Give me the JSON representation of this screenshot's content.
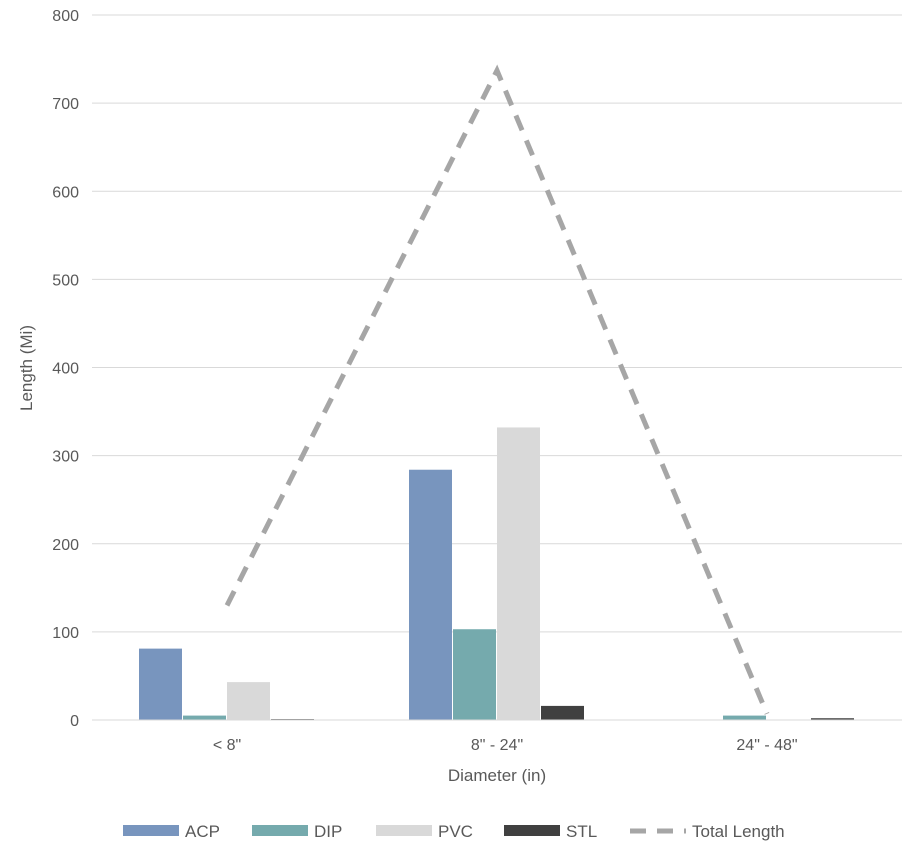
{
  "chart_data": {
    "type": "bar",
    "categories": [
      "< 8\"",
      "8\" - 24\"",
      "24\" - 48\""
    ],
    "series": [
      {
        "name": "ACP",
        "kind": "bar",
        "color": "#7895BE",
        "values": [
          81,
          284,
          0
        ]
      },
      {
        "name": "DIP",
        "kind": "bar",
        "color": "#75AAAD",
        "values": [
          5,
          103,
          5
        ]
      },
      {
        "name": "PVC",
        "kind": "bar",
        "color": "#D9D9D9",
        "values": [
          43,
          332,
          0
        ]
      },
      {
        "name": "STL",
        "kind": "bar",
        "color": "#404040",
        "values": [
          1,
          16,
          2
        ]
      },
      {
        "name": "Total Length",
        "kind": "line",
        "line_style": "dashed",
        "color": "#A6A6A6",
        "values": [
          130,
          737,
          7
        ]
      }
    ],
    "xlabel": "Diameter (in)",
    "ylabel": "Length (Mi)",
    "ylim": [
      0,
      800
    ],
    "yticks": [
      0,
      100,
      200,
      300,
      400,
      500,
      600,
      700,
      800
    ],
    "grid": "horizontal",
    "legend": "bottom"
  }
}
